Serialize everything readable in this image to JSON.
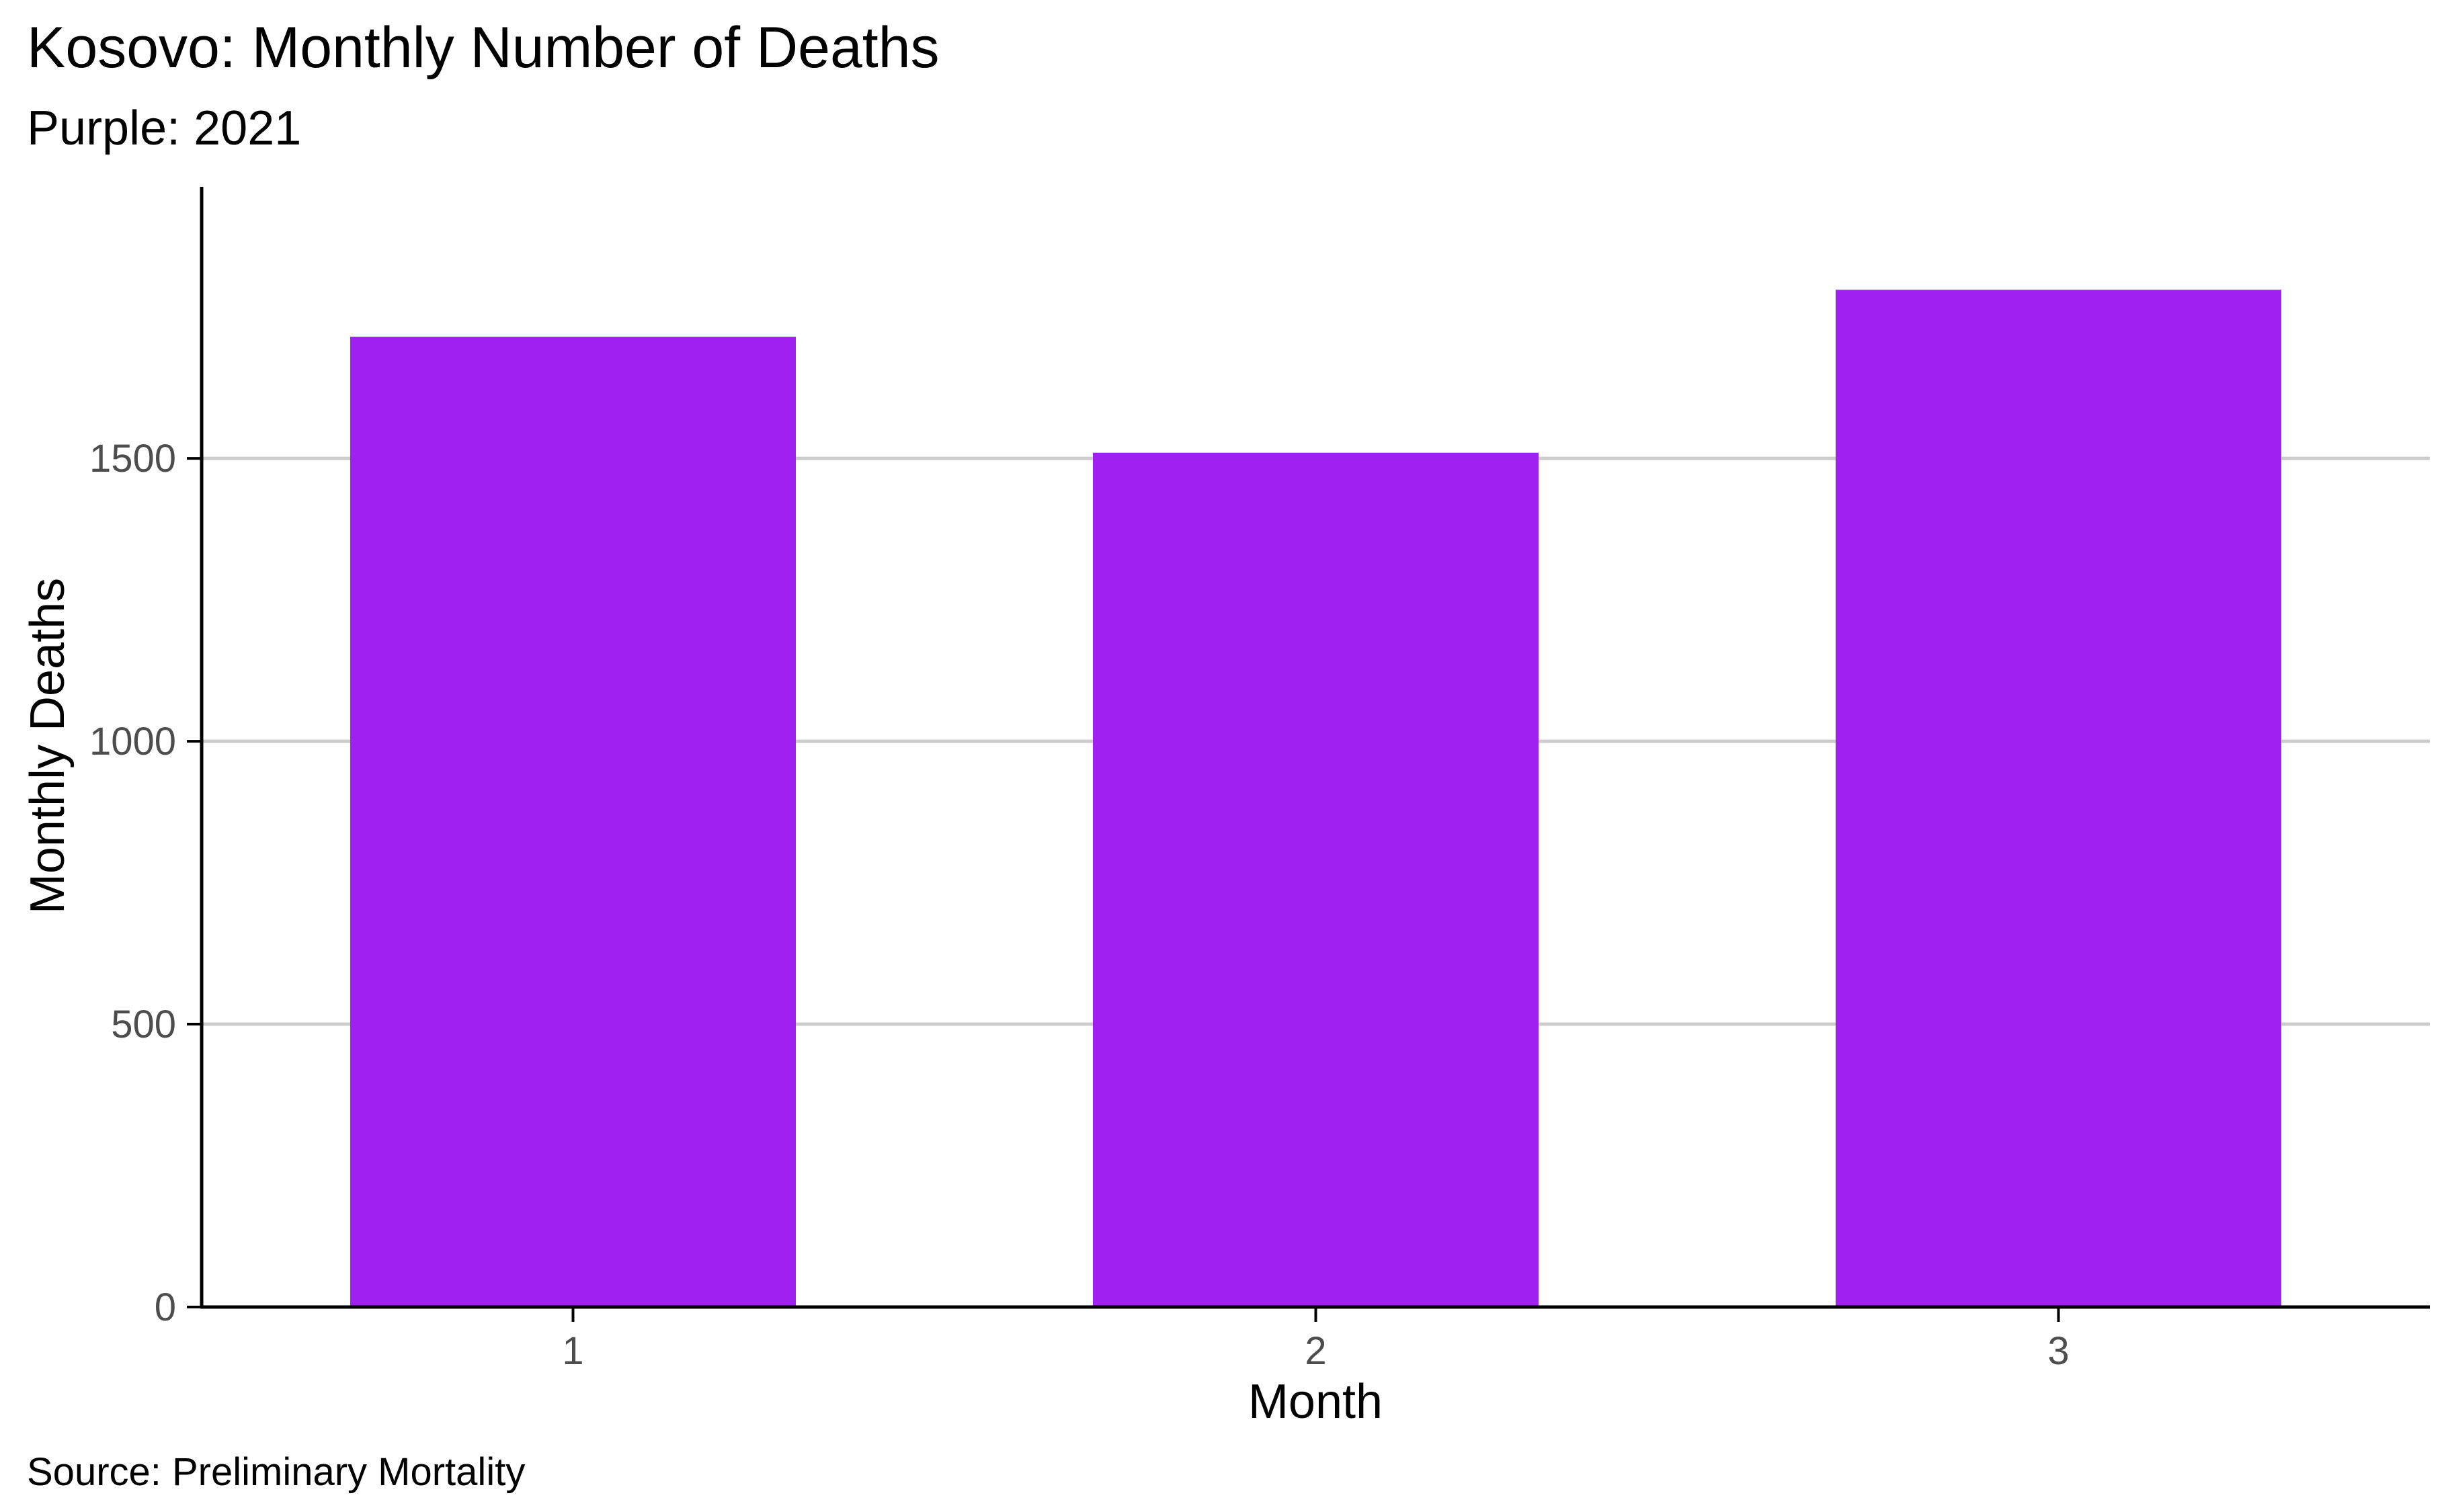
{
  "chart_data": {
    "type": "bar",
    "title": "Kosovo: Monthly Number of Deaths",
    "subtitle": "Purple: 2021",
    "caption": "Source: Preliminary Mortality",
    "xlabel": "Month",
    "ylabel": "Monthly Deaths",
    "categories": [
      "1",
      "2",
      "3"
    ],
    "values": [
      1715,
      1510,
      1798
    ],
    "ylim": [
      0,
      1980
    ],
    "yticks": [
      0,
      500,
      1000,
      1500
    ],
    "ytick_labels": [
      "0",
      "500",
      "1000",
      "1500"
    ],
    "grid": true,
    "bar_color": "#A020F0",
    "grid_color": "#cccccc",
    "axis_color": "#000000",
    "tick_label_color": "#4d4d4d"
  }
}
